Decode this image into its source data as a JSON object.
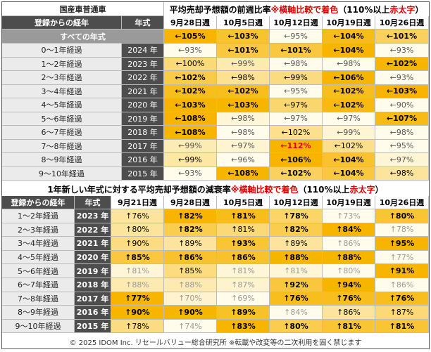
{
  "top": {
    "corner": "国産車普通車",
    "title": [
      {
        "text": "平均売却予想額の前週比率 ",
        "color": "#000"
      },
      {
        "text": "※横軸比較で着色",
        "color": "#e00000"
      },
      {
        "text": "（110%以上 ",
        "color": "#000"
      },
      {
        "text": "赤太字",
        "color": "#e00000"
      },
      {
        "text": "）",
        "color": "#000"
      }
    ],
    "header": [
      "登録からの経年",
      "年式",
      "9月28日週",
      "10月5日週",
      "10月12日週",
      "10月19日週",
      "10月26日週"
    ],
    "all_row": {
      "label": "すべての年式",
      "cells": [
        "←105%",
        "←103%",
        "←95%",
        "←104%",
        "←101%"
      ]
    },
    "rows": [
      [
        "0～1年経過",
        "2024 年",
        "←93%",
        "←101%",
        "←101%",
        "←104%",
        "←93%"
      ],
      [
        "1～2年経過",
        "2023 年",
        "←100%",
        "←99%",
        "←98%",
        "←98%",
        "←102%"
      ],
      [
        "2～3年経過",
        "2022 年",
        "←102%",
        "←98%",
        "←99%",
        "←106%",
        "←93%"
      ],
      [
        "3～4年経過",
        "2021 年",
        "←102%",
        "←102%",
        "←95%",
        "←102%",
        "←103%"
      ],
      [
        "4～5年経過",
        "2020 年",
        "←103%",
        "←103%",
        "←97%",
        "←102%",
        "←90%"
      ],
      [
        "5～6年経過",
        "2019 年",
        "←108%",
        "←98%",
        "←97%",
        "←97%",
        "←107%"
      ],
      [
        "6～7年経過",
        "2018 年",
        "←108%",
        "←98%",
        "←102%",
        "←99%",
        "←98%"
      ],
      [
        "7～8年経過",
        "2017 年",
        "←99%",
        "←97%",
        "←112%",
        "←102%",
        "←95%"
      ],
      [
        "8～9年経過",
        "2016 年",
        "←99%",
        "←96%",
        "←106%",
        "←104%",
        "←97%"
      ],
      [
        "9～10年経過",
        "2015 年",
        "←93%",
        "←108%",
        "←102%",
        "←104%",
        "←98%"
      ]
    ]
  },
  "bottom": {
    "title": [
      {
        "text": "1年新しい年式に対する平均売却予想額の減衰率 ",
        "color": "#000"
      },
      {
        "text": "※横軸比較で着色",
        "color": "#e00000"
      },
      {
        "text": "（110%以上 ",
        "color": "#000"
      },
      {
        "text": "赤太字",
        "color": "#e00000"
      },
      {
        "text": "）",
        "color": "#000"
      }
    ],
    "header": [
      "登録からの経年",
      "年式",
      "9月21日週",
      "9月28日週",
      "10月5日週",
      "10月12日週",
      "10月19日週",
      "10月26日週"
    ],
    "rows": [
      [
        "1～2年経過",
        "2023 年",
        "↑76%",
        "↑82%",
        "↑81%",
        "↑78%",
        "↑73%",
        "↑80%"
      ],
      [
        "2～3年経過",
        "2022 年",
        "↑80%",
        "↑82%",
        "↑81%",
        "↑82%",
        "↑84%",
        "↑78%"
      ],
      [
        "3～4年経過",
        "2021 年",
        "↑90%",
        "↑89%",
        "↑93%",
        "↑89%",
        "↑86%",
        "↑95%"
      ],
      [
        "4～5年経過",
        "2020 年",
        "↑85%",
        "↑86%",
        "↑86%",
        "↑88%",
        "↑88%",
        "↑77%"
      ],
      [
        "5～6年経過",
        "2019 年",
        "↑81%",
        "↑85%",
        "↑81%",
        "↑81%",
        "↑80%",
        "↑91%"
      ],
      [
        "6～7年経過",
        "2018 年",
        "↑88%",
        "↑88%",
        "↑87%",
        "↑92%",
        "↑94%",
        "↑86%"
      ],
      [
        "7～8年経過",
        "2017 年",
        "↑77%",
        "↑70%",
        "↑69%",
        "↑76%",
        "↑76%",
        "↑76%"
      ],
      [
        "8～9年経過",
        "2016 年",
        "↑90%",
        "↑90%",
        "↑89%",
        "↑84%",
        "↑86%",
        "↑87%"
      ],
      [
        "9～10年経過",
        "2015 年",
        "↑78%",
        "↑74%",
        "↑83%",
        "↑80%",
        "↑81%",
        "↑81%"
      ]
    ]
  },
  "footer": "© 2025 IDOM Inc. リセールバリュー総合研究所 ※転載や改変等の二次利用を固く禁じます"
}
